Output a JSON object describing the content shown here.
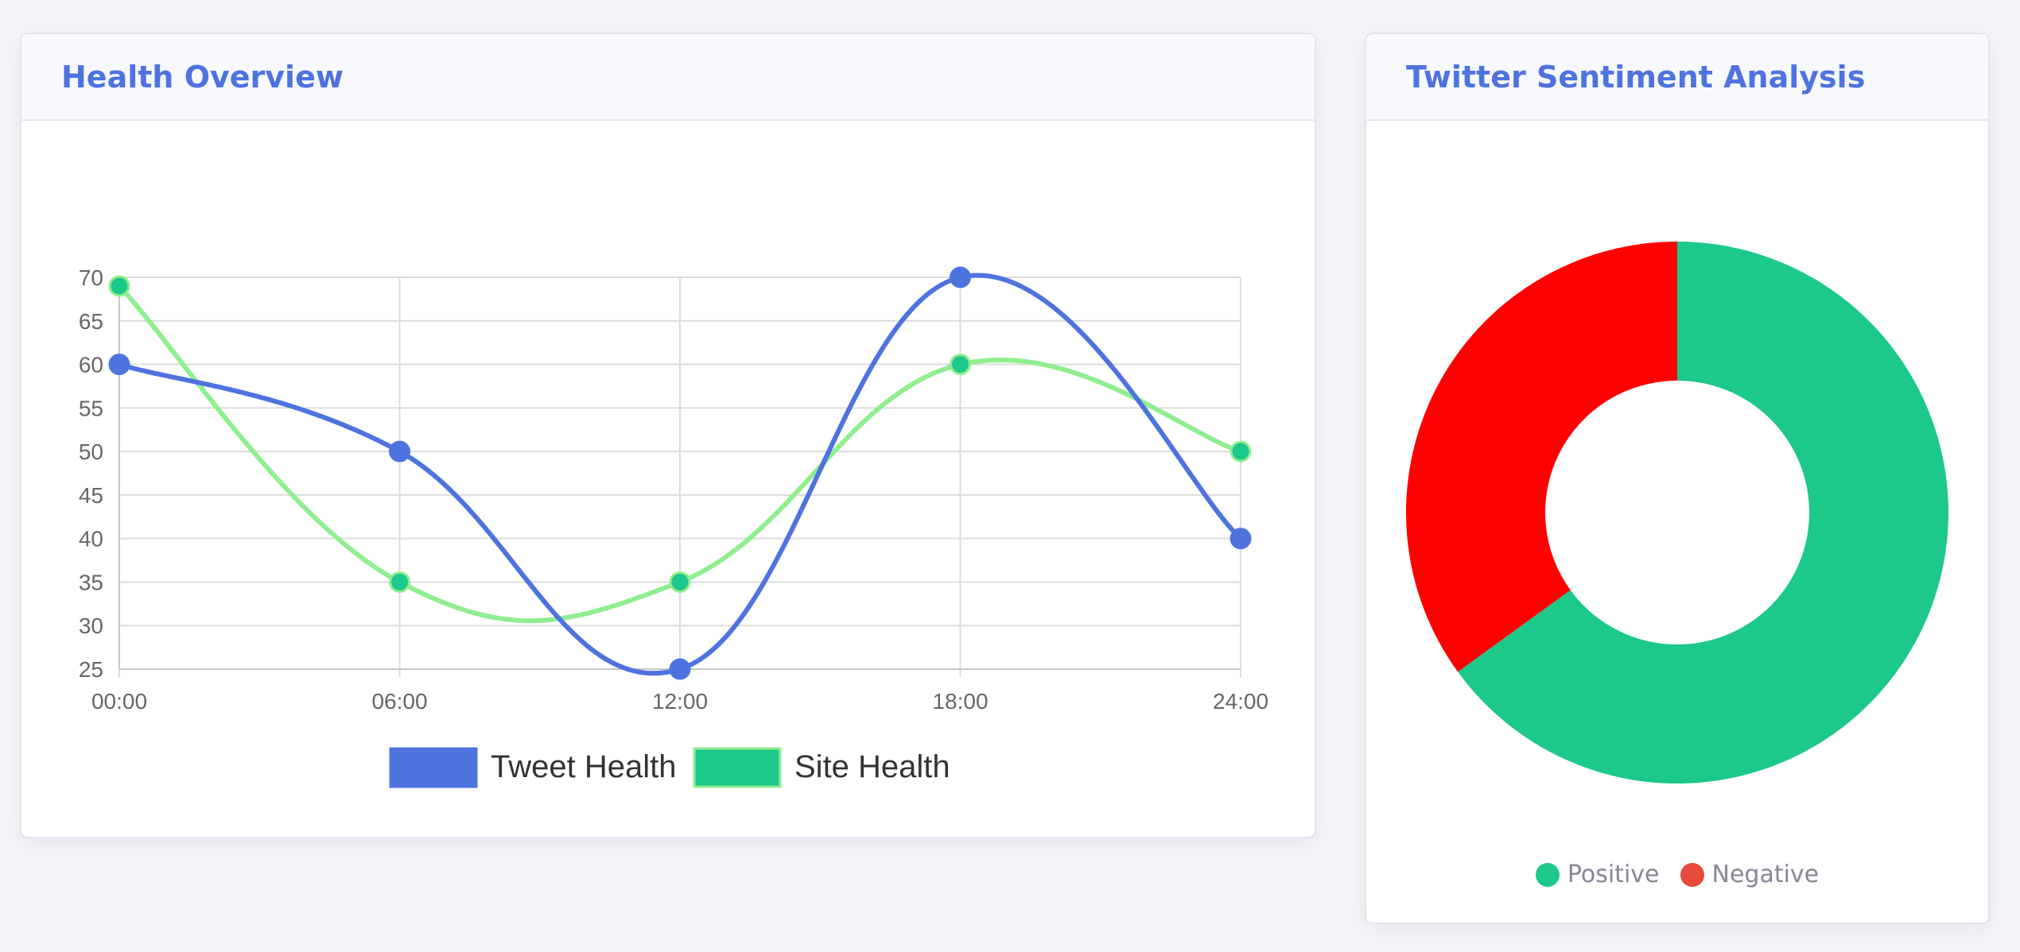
{
  "cards": {
    "health": {
      "title": "Health Overview"
    },
    "sentiment": {
      "title": "Twitter Sentiment Analysis"
    }
  },
  "colors": {
    "tweet_health": "#4e73df",
    "site_health_fill": "#1cc88a",
    "site_health_line": "#90ee90",
    "positive": "#1cc88a",
    "negative": "#ff0000",
    "negative_legend": "#e74a3b"
  },
  "chart_data": [
    {
      "type": "line",
      "categories": [
        "00:00",
        "06:00",
        "12:00",
        "18:00",
        "24:00"
      ],
      "series": [
        {
          "name": "Tweet Health",
          "values": [
            60,
            50,
            25,
            70,
            40
          ]
        },
        {
          "name": "Site Health",
          "values": [
            69,
            35,
            35,
            60,
            50
          ]
        }
      ],
      "ylim": [
        25,
        70
      ],
      "yticks": [
        25,
        30,
        35,
        40,
        45,
        50,
        55,
        60,
        65,
        70
      ],
      "grid": true,
      "legend": "bottom"
    },
    {
      "type": "pie",
      "variant": "doughnut",
      "labels": [
        "Positive",
        "Negative"
      ],
      "values": [
        65,
        35
      ],
      "legend": "bottom"
    }
  ]
}
